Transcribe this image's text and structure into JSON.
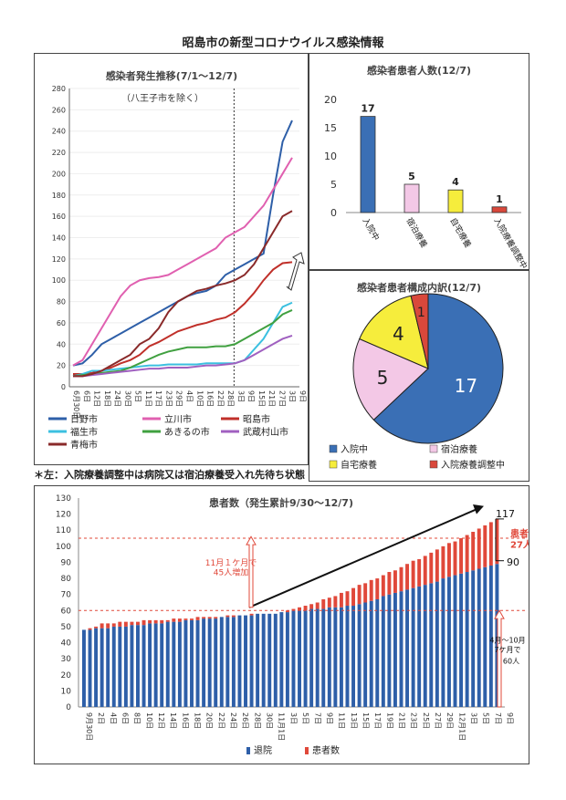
{
  "page_title": "昭島市の新型コロナウイルス感染情報",
  "footnote": "＊左：入院療養調整中は病院又は宿泊療養受入れ先待ち状態",
  "chart_data": [
    {
      "type": "line",
      "title": "感染者発生推移(7/1～12/7)",
      "subtitle": "（八王子市を除く）",
      "ylim": [
        0,
        280
      ],
      "yticks": [
        0,
        20,
        40,
        60,
        80,
        100,
        120,
        140,
        160,
        180,
        200,
        220,
        240,
        260,
        280
      ],
      "xticks": [
        "6月30日",
        "6日",
        "12日",
        "18日",
        "24日",
        "30日",
        "5日",
        "11日",
        "17日",
        "23日",
        "29日",
        "4日",
        "10日",
        "16日",
        "22日",
        "28日",
        "3日",
        "9日",
        "15日",
        "21日",
        "27日",
        "3日",
        "9日"
      ],
      "series": [
        {
          "name": "日野市",
          "color": "#2e5fa8",
          "values": [
            20,
            22,
            30,
            40,
            45,
            50,
            55,
            60,
            65,
            70,
            75,
            80,
            85,
            88,
            90,
            95,
            105,
            110,
            115,
            120,
            125,
            180,
            230,
            250
          ]
        },
        {
          "name": "立川市",
          "color": "#e060b0",
          "values": [
            20,
            25,
            40,
            55,
            70,
            85,
            95,
            100,
            102,
            103,
            105,
            110,
            115,
            120,
            125,
            130,
            140,
            145,
            150,
            160,
            170,
            185,
            200,
            215
          ]
        },
        {
          "name": "昭島市",
          "color": "#c0302a",
          "values": [
            12,
            12,
            13,
            15,
            18,
            22,
            25,
            30,
            38,
            42,
            47,
            52,
            55,
            58,
            60,
            63,
            65,
            70,
            78,
            88,
            100,
            110,
            116,
            117
          ]
        },
        {
          "name": "福生市",
          "color": "#3cc0e0",
          "values": [
            10,
            12,
            15,
            15,
            16,
            17,
            18,
            19,
            20,
            20,
            21,
            21,
            21,
            21,
            22,
            22,
            22,
            22,
            25,
            35,
            45,
            60,
            75,
            79
          ]
        },
        {
          "name": "あきるの市",
          "color": "#40a040",
          "values": [
            10,
            11,
            12,
            13,
            14,
            15,
            18,
            22,
            26,
            30,
            33,
            35,
            37,
            37,
            37,
            38,
            38,
            40,
            45,
            50,
            55,
            60,
            68,
            72
          ]
        },
        {
          "name": "武蔵村山市",
          "color": "#a060c0",
          "values": [
            10,
            10,
            11,
            12,
            13,
            14,
            15,
            16,
            17,
            17,
            18,
            18,
            18,
            19,
            20,
            20,
            21,
            22,
            25,
            30,
            35,
            40,
            45,
            48
          ]
        },
        {
          "name": "青梅市",
          "color": "#8a2a2a",
          "values": [
            10,
            10,
            12,
            15,
            20,
            25,
            30,
            40,
            45,
            55,
            70,
            80,
            85,
            90,
            92,
            95,
            97,
            100,
            105,
            115,
            130,
            145,
            160,
            165
          ]
        }
      ]
    },
    {
      "type": "bar",
      "title": "感染者患者人数(12/7)",
      "ylim": [
        0,
        20
      ],
      "yticks": [
        0,
        5,
        10,
        15,
        20
      ],
      "categories": [
        "入院中",
        "宿泊療養",
        "自宅療養",
        "入院療養調整中"
      ],
      "values": [
        17,
        5,
        4,
        1
      ],
      "colors": [
        "#3a6fb5",
        "#f3c8e6",
        "#f6ed3c",
        "#d9483b"
      ]
    },
    {
      "type": "pie",
      "title": "感染者患者構成内訳(12/7)",
      "categories": [
        "入院中",
        "宿泊療養",
        "自宅療養",
        "入院療養調整中"
      ],
      "values": [
        17,
        5,
        4,
        1
      ],
      "colors": [
        "#3a6fb5",
        "#f3c8e6",
        "#f6ed3c",
        "#d9483b"
      ]
    },
    {
      "type": "bar",
      "title": "患者数（発生累計9/30～12/7)",
      "ylim": [
        0,
        130
      ],
      "yticks": [
        0,
        10,
        20,
        30,
        40,
        50,
        60,
        70,
        80,
        90,
        100,
        110,
        120,
        130
      ],
      "xticks": [
        "9月30日",
        "2日",
        "4日",
        "6日",
        "8日",
        "10日",
        "12日",
        "14日",
        "16日",
        "18日",
        "20日",
        "22日",
        "24日",
        "26日",
        "28日",
        "30日",
        "11月1日",
        "3日",
        "5日",
        "7日",
        "9日",
        "11日",
        "13日",
        "15日",
        "17日",
        "19日",
        "21日",
        "23日",
        "25日",
        "27日",
        "29日",
        "12月1日",
        "3日",
        "5日",
        "7日",
        "9日"
      ],
      "series": [
        {
          "name": "退院",
          "color": "#2e5fa8"
        },
        {
          "name": "患者数",
          "color": "#e0483a"
        }
      ],
      "annotations": {
        "left_text_1": "11月１ケ月で",
        "left_text_2": "45人増加",
        "top_value": "117",
        "side_label_1": "患者",
        "side_label_2": "27人",
        "bottom_value": "90",
        "right_text_1": "4月～10月",
        "right_text_2": "7ケ月で",
        "right_text_3": "60人"
      }
    }
  ]
}
